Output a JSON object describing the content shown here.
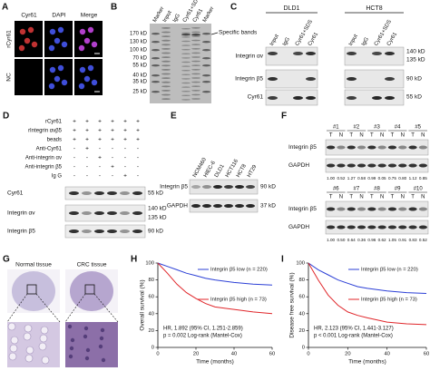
{
  "panels": {
    "a": {
      "label": "A",
      "columns": [
        "Cyr61",
        "DAPI",
        "Merge"
      ],
      "rows": [
        "rCyr61",
        "NC"
      ]
    },
    "b": {
      "label": "B",
      "lanes": [
        "Marker",
        "Input",
        "IgG",
        "Cyr61+SDS",
        "Cyr61",
        "Marker"
      ],
      "markers": [
        "170 kD",
        "130 kD",
        "100 kD",
        "70 kD",
        "55 kD",
        "40 kD",
        "35 kD",
        "25 kD"
      ],
      "annotation": "Specific bands"
    },
    "c": {
      "label": "C",
      "cell_lines": [
        "DLD1",
        "HCT8"
      ],
      "lanes": [
        "Input",
        "IgG",
        "Cyr61+SDS",
        "Cyr61"
      ],
      "rows": [
        "Integrin αv",
        "Integrin β5",
        "Cyr61"
      ],
      "sizes": [
        "140 kD",
        "135 kD",
        "90 kD",
        "55 kD"
      ]
    },
    "d": {
      "label": "D",
      "conditions": [
        {
          "name": "rCyr61",
          "signs": [
            "+",
            "+",
            "+",
            "+",
            "+",
            "+"
          ]
        },
        {
          "name": "rIntegrin αvβ5",
          "signs": [
            "+",
            "+",
            "+",
            "+",
            "+",
            "+"
          ]
        },
        {
          "name": "beads",
          "signs": [
            "+",
            "+",
            "+",
            "+",
            "+",
            "+"
          ]
        },
        {
          "name": "Anti-Cyr61",
          "signs": [
            "-",
            "+",
            "-",
            "-",
            "-",
            "-"
          ]
        },
        {
          "name": "Anti-integrin αv",
          "signs": [
            "-",
            "-",
            "+",
            "-",
            "-",
            "-"
          ]
        },
        {
          "name": "Anti-integrin β5",
          "signs": [
            "-",
            "-",
            "-",
            "+",
            "-",
            "-"
          ]
        },
        {
          "name": "Ig G",
          "signs": [
            "-",
            "-",
            "-",
            "-",
            "+",
            "-"
          ]
        }
      ],
      "rows": [
        "Cyr61",
        "Integrin αv",
        "Integrin β5"
      ],
      "sizes": [
        "55 kD",
        "140 kD",
        "135 kD",
        "90 kD"
      ]
    },
    "e": {
      "label": "E",
      "lanes": [
        "NCM460",
        "HIEC-6",
        "DLD1",
        "HCT116",
        "HCT8",
        "HT29"
      ],
      "rows": [
        "Integrin β5",
        "GAPDH"
      ],
      "sizes": [
        "90 kD",
        "37 kD"
      ]
    },
    "f": {
      "label": "F",
      "groups_top": [
        "#1",
        "#2",
        "#3",
        "#4",
        "#5"
      ],
      "groups_bottom": [
        "#6",
        "#7",
        "#8",
        "#9",
        "#10"
      ],
      "tn": [
        "T",
        "N"
      ],
      "rows": [
        "Integrin β5",
        "GAPDH"
      ],
      "ratios_top": [
        "1.00",
        "0.52",
        "1.27",
        "0.58",
        "0.99",
        "0.05",
        "0.75",
        "0.80",
        "1.12",
        "0.85"
      ],
      "ratios_bottom": [
        "1.00",
        "0.50",
        "0.64",
        "0.36",
        "0.96",
        "0.62",
        "1.05",
        "0.91",
        "0.83",
        "0.52"
      ]
    },
    "g": {
      "label": "G",
      "tissues": [
        "Normal tissue",
        "CRC tissue"
      ]
    }
  },
  "chart_data": [
    {
      "type": "line",
      "label": "H",
      "ylabel": "Overall survival (%)",
      "xlabel": "Time (months)",
      "xlim": [
        0,
        60
      ],
      "ylim": [
        0,
        100
      ],
      "xticks": [
        0,
        20,
        40,
        60
      ],
      "yticks": [
        0,
        20,
        40,
        60,
        80,
        100
      ],
      "x": [
        0,
        5,
        10,
        15,
        20,
        25,
        30,
        40,
        50,
        60
      ],
      "series": [
        {
          "name": "Integrin β5 low (n = 220)",
          "color": "#2b3fd6",
          "values": [
            100,
            96,
            92,
            88,
            85,
            82,
            80,
            77,
            75,
            74
          ]
        },
        {
          "name": "Integrin β5 high (n = 73)",
          "color": "#e0262a",
          "values": [
            100,
            88,
            75,
            65,
            58,
            52,
            48,
            45,
            42,
            40
          ]
        }
      ],
      "annotations": [
        "HR, 1.892 (95% CI, 1.251-2.859)",
        "p = 0.002 Log-rank (Mantel-Cox)"
      ]
    },
    {
      "type": "line",
      "label": "I",
      "ylabel": "Disease free survival (%)",
      "xlabel": "Time (months)",
      "xlim": [
        0,
        60
      ],
      "ylim": [
        0,
        100
      ],
      "xticks": [
        0,
        20,
        40,
        60
      ],
      "yticks": [
        0,
        20,
        40,
        60,
        80,
        100
      ],
      "x": [
        0,
        5,
        10,
        15,
        20,
        25,
        30,
        40,
        50,
        60
      ],
      "series": [
        {
          "name": "Integrin β5 low (n = 220)",
          "color": "#2b3fd6",
          "values": [
            100,
            92,
            86,
            80,
            76,
            72,
            70,
            67,
            65,
            64
          ]
        },
        {
          "name": "Integrin β5 high (n = 73)",
          "color": "#e0262a",
          "values": [
            100,
            80,
            62,
            50,
            42,
            38,
            35,
            30,
            28,
            27
          ]
        }
      ],
      "annotations": [
        "HR, 2.123 (95% CI, 1.441-3.127)",
        "p < 0.001 Log-rank (Mantel-Cox)"
      ]
    }
  ]
}
